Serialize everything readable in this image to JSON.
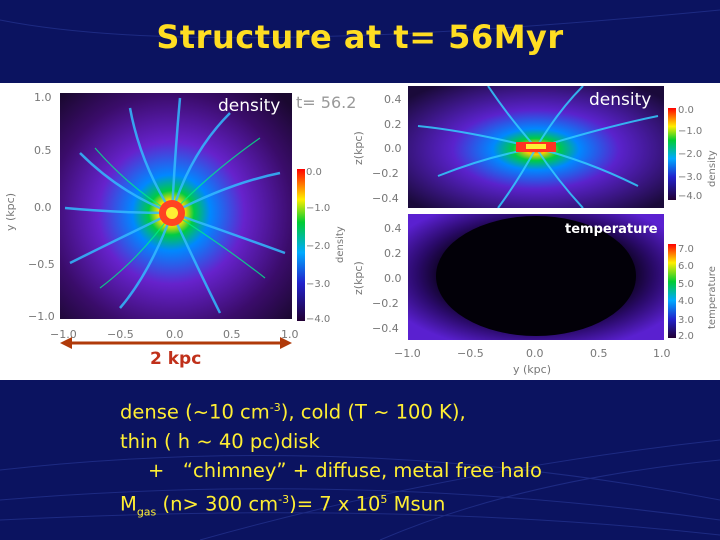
{
  "slide": {
    "title": "Structure at t= 56Myr"
  },
  "left_plot": {
    "label": "density",
    "time_text": "t=  56.2",
    "y_axis_label": "y (kpc)",
    "y_ticks": [
      "1.0",
      "0.5",
      "0.0",
      "−0.5",
      "−1.0"
    ],
    "x_ticks": [
      "−1.0",
      "−0.5",
      "0.0",
      "0.5",
      "1.0"
    ],
    "colorbar_label": "density",
    "colorbar_ticks": [
      "0.0",
      "−1.0",
      "−2.0",
      "−3.0",
      "−4.0"
    ],
    "scale_label": "2 kpc"
  },
  "top_right_plot": {
    "label": "density",
    "y_axis_label": "z(kpc)",
    "y_ticks": [
      "0.4",
      "0.2",
      "0.0",
      "−0.2",
      "−0.4"
    ],
    "colorbar_label": "density",
    "colorbar_ticks": [
      "0.0",
      "−1.0",
      "−2.0",
      "−3.0",
      "−4.0"
    ]
  },
  "bottom_right_plot": {
    "label": "temperature",
    "y_axis_label": "z(kpc)",
    "y_ticks": [
      "0.4",
      "0.2",
      "0.0",
      "−0.2",
      "−0.4"
    ],
    "x_ticks": [
      "−1.0",
      "−0.5",
      "0.0",
      "0.5",
      "1.0"
    ],
    "x_axis_label": "y (kpc)",
    "colorbar_label": "temperature",
    "colorbar_ticks": [
      "7.0",
      "6.0",
      "5.0",
      "4.0",
      "3.0",
      "2.0"
    ]
  },
  "text_block": {
    "line1_a": "dense (~10 cm",
    "line1_sup": "-3",
    "line1_b": "), cold (T ~ 100 K),",
    "line2": "thin ( h ~ 40 pc)disk",
    "line3": "+   “chimney” + diffuse, metal free halo",
    "line4_a": "M",
    "line4_sub": "gas",
    "line4_b": " (n> 300 cm",
    "line4_sup1": "-3",
    "line4_c": ")= 7 x 10",
    "line4_sup2": "5",
    "line4_d": " Msun"
  },
  "colors": {
    "background": "#0b1360",
    "title": "#ffdd22",
    "text": "#ffee33",
    "scale_arrow": "#b03a0a"
  }
}
